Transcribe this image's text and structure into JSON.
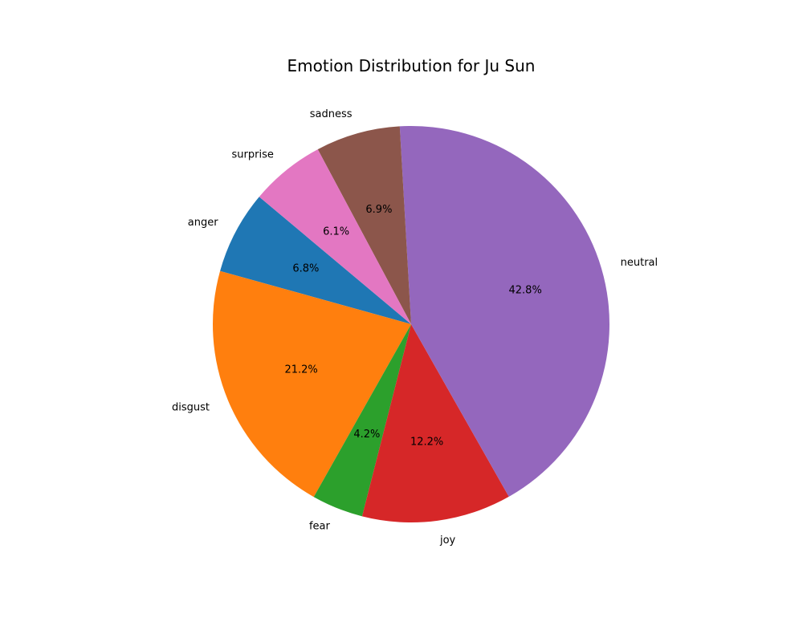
{
  "chart_data": {
    "type": "pie",
    "title": "Emotion Distribution for Ju Sun",
    "slices": [
      {
        "label": "anger",
        "value": 6.8,
        "pct_label": "6.8%",
        "color": "#1f77b4"
      },
      {
        "label": "disgust",
        "value": 21.2,
        "pct_label": "21.2%",
        "color": "#ff7f0e"
      },
      {
        "label": "fear",
        "value": 4.2,
        "pct_label": "4.2%",
        "color": "#2ca02c"
      },
      {
        "label": "joy",
        "value": 12.2,
        "pct_label": "12.2%",
        "color": "#d62728"
      },
      {
        "label": "neutral",
        "value": 42.8,
        "pct_label": "42.8%",
        "color": "#9467bd"
      },
      {
        "label": "sadness",
        "value": 6.9,
        "pct_label": "6.9%",
        "color": "#8c564b"
      },
      {
        "label": "surprise",
        "value": 6.1,
        "pct_label": "6.1%",
        "color": "#e377c2"
      }
    ],
    "start_angle_deg": 140,
    "direction": "counterclockwise",
    "legend": "none"
  }
}
